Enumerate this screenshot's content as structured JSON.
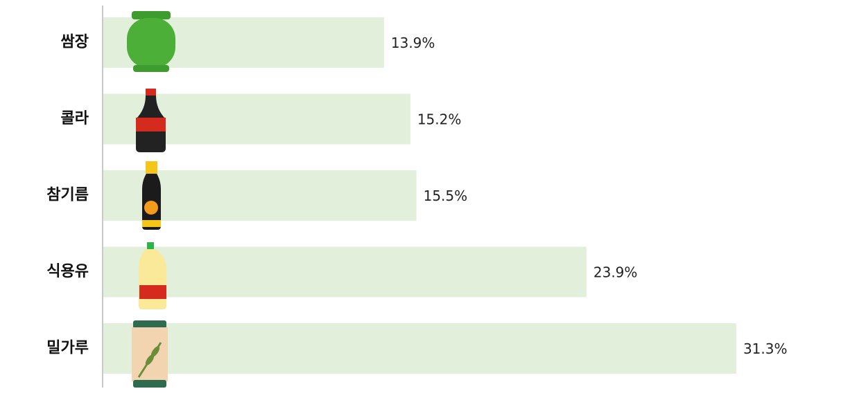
{
  "chart_data": {
    "type": "bar",
    "orientation": "horizontal",
    "categories": [
      "쌈장",
      "콜라",
      "참기름",
      "식용유",
      "밀가루"
    ],
    "values": [
      13.9,
      15.2,
      15.5,
      23.9,
      31.3
    ],
    "value_labels": [
      "13.9%",
      "15.2%",
      "15.5%",
      "23.9%",
      "31.3%"
    ],
    "color": "#e2efda"
  }
}
